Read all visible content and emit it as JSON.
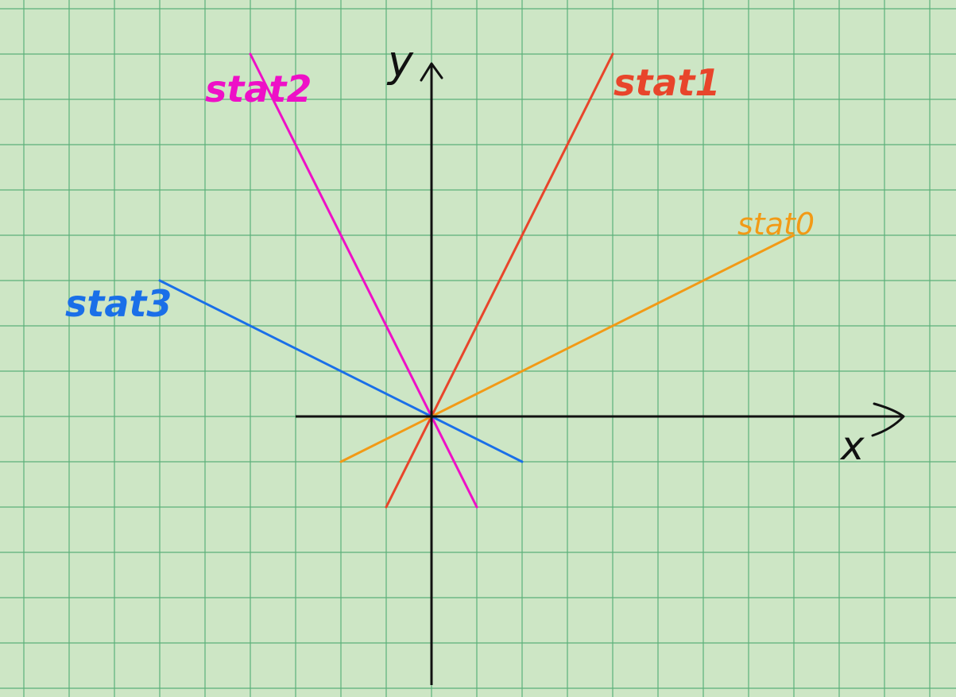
{
  "axes": {
    "x_label": "x",
    "y_label": "y",
    "x_range": [
      -3,
      10.5
    ],
    "y_range": [
      -6,
      8
    ]
  },
  "colors": {
    "background": "#cde6c5",
    "grid": "#5bb07a",
    "axis": "#111111"
  },
  "lines": [
    {
      "label": "stat1",
      "color": "#e8452b",
      "x": [
        -1,
        4
      ],
      "slope": 2
    },
    {
      "label": "stat2",
      "color": "#ee10c7",
      "x": [
        -4,
        1
      ],
      "slope": -2
    },
    {
      "label": "stat3",
      "color": "#1a6fe8",
      "x": [
        -6,
        2
      ],
      "slope": -0.5
    },
    {
      "label": "stat0",
      "color": "#f29a16",
      "x": [
        -2,
        8
      ],
      "slope": 0.5
    }
  ]
}
